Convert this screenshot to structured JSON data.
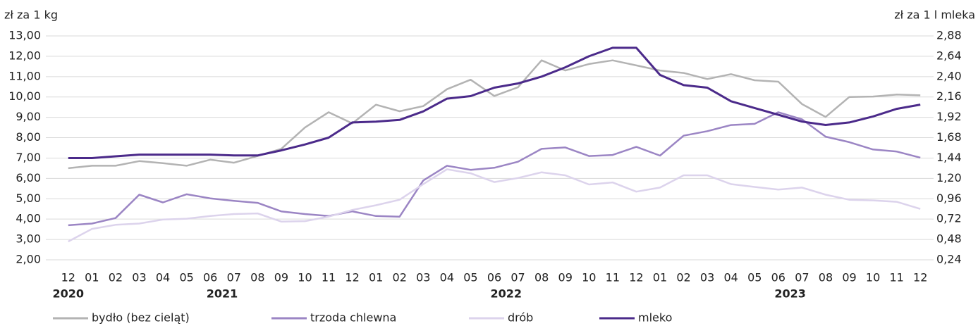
{
  "chart_data": {
    "type": "line",
    "ylabel": "zł za 1 kg",
    "y2label": "zł za 1 l mleka",
    "categories": [
      "12",
      "01",
      "02",
      "03",
      "04",
      "05",
      "06",
      "07",
      "08",
      "09",
      "10",
      "11",
      "12",
      "01",
      "02",
      "03",
      "04",
      "05",
      "06",
      "07",
      "08",
      "09",
      "10",
      "11",
      "12",
      "01",
      "02",
      "03",
      "04",
      "05",
      "06",
      "07",
      "08",
      "09",
      "10",
      "11",
      "12"
    ],
    "year_groups": [
      {
        "label": "2020",
        "span": 1
      },
      {
        "label": "2021",
        "span": 12
      },
      {
        "label": "2022",
        "span": 12
      },
      {
        "label": "2023",
        "span": 12
      }
    ],
    "ylim": [
      2,
      13
    ],
    "yticks": [
      {
        "value": 2,
        "label": "2,00"
      },
      {
        "value": 3,
        "label": "3,00"
      },
      {
        "value": 4,
        "label": "4,00"
      },
      {
        "value": 5,
        "label": "5,00"
      },
      {
        "value": 6,
        "label": "6,00"
      },
      {
        "value": 7,
        "label": "7,00"
      },
      {
        "value": 8,
        "label": "8,00"
      },
      {
        "value": 9,
        "label": "9,00"
      },
      {
        "value": 10,
        "label": "10,00"
      },
      {
        "value": 11,
        "label": "11,00"
      },
      {
        "value": 12,
        "label": "12,00"
      },
      {
        "value": 13,
        "label": "13,00"
      }
    ],
    "y2lim": [
      0.24,
      2.88
    ],
    "y2ticks": [
      {
        "value": 0.24,
        "label": "0,24"
      },
      {
        "value": 0.48,
        "label": "0,48"
      },
      {
        "value": 0.72,
        "label": "0,72"
      },
      {
        "value": 0.96,
        "label": "0,96"
      },
      {
        "value": 1.2,
        "label": "1,20"
      },
      {
        "value": 1.44,
        "label": "1,44"
      },
      {
        "value": 1.68,
        "label": "1,68"
      },
      {
        "value": 1.92,
        "label": "1,92"
      },
      {
        "value": 2.16,
        "label": "2,16"
      },
      {
        "value": 2.4,
        "label": "2,40"
      },
      {
        "value": 2.64,
        "label": "2,64"
      },
      {
        "value": 2.88,
        "label": "2,88"
      }
    ],
    "grid": true,
    "series": [
      {
        "name": "bydło (bez cieląt)",
        "color": "#b3b3b3",
        "values": [
          6.5,
          6.62,
          6.62,
          6.85,
          6.75,
          6.62,
          6.92,
          6.77,
          7.1,
          7.45,
          8.5,
          9.25,
          8.7,
          9.62,
          9.3,
          9.55,
          10.38,
          10.85,
          10.05,
          10.48,
          11.8,
          11.3,
          11.62,
          11.8,
          11.55,
          11.3,
          11.18,
          10.88,
          11.12,
          10.82,
          10.75,
          9.65,
          9.02,
          10.0,
          10.02,
          10.12,
          10.08
        ]
      },
      {
        "name": "trzoda chlewna",
        "color": "#9b85c4",
        "values": [
          3.7,
          3.78,
          4.05,
          5.2,
          4.82,
          5.22,
          5.02,
          4.9,
          4.8,
          4.38,
          4.25,
          4.15,
          4.38,
          4.15,
          4.12,
          5.9,
          6.62,
          6.42,
          6.52,
          6.82,
          7.45,
          7.52,
          7.1,
          7.15,
          7.55,
          7.12,
          8.1,
          8.32,
          8.62,
          8.68,
          9.25,
          8.9,
          8.05,
          7.78,
          7.42,
          7.32,
          7.02
        ]
      },
      {
        "name": "drób",
        "color": "#dcd3ec",
        "values": [
          2.9,
          3.52,
          3.72,
          3.78,
          3.98,
          4.02,
          4.15,
          4.25,
          4.28,
          3.88,
          3.9,
          4.12,
          4.45,
          4.68,
          4.95,
          5.72,
          6.45,
          6.25,
          5.82,
          6.02,
          6.3,
          6.15,
          5.7,
          5.8,
          5.35,
          5.55,
          6.15,
          6.15,
          5.72,
          5.58,
          5.45,
          5.55,
          5.2,
          4.95,
          4.92,
          4.85,
          4.5
        ]
      },
      {
        "name": "mleko",
        "color": "#4b2a8a",
        "axis": "y2",
        "values": [
          1.44,
          1.44,
          1.46,
          1.48,
          1.48,
          1.48,
          1.48,
          1.47,
          1.47,
          1.53,
          1.6,
          1.68,
          1.86,
          1.87,
          1.89,
          1.99,
          2.14,
          2.17,
          2.27,
          2.32,
          2.4,
          2.51,
          2.64,
          2.74,
          2.74,
          2.42,
          2.3,
          2.27,
          2.11,
          2.03,
          1.95,
          1.87,
          1.83,
          1.86,
          1.93,
          2.02,
          2.07
        ]
      }
    ]
  }
}
